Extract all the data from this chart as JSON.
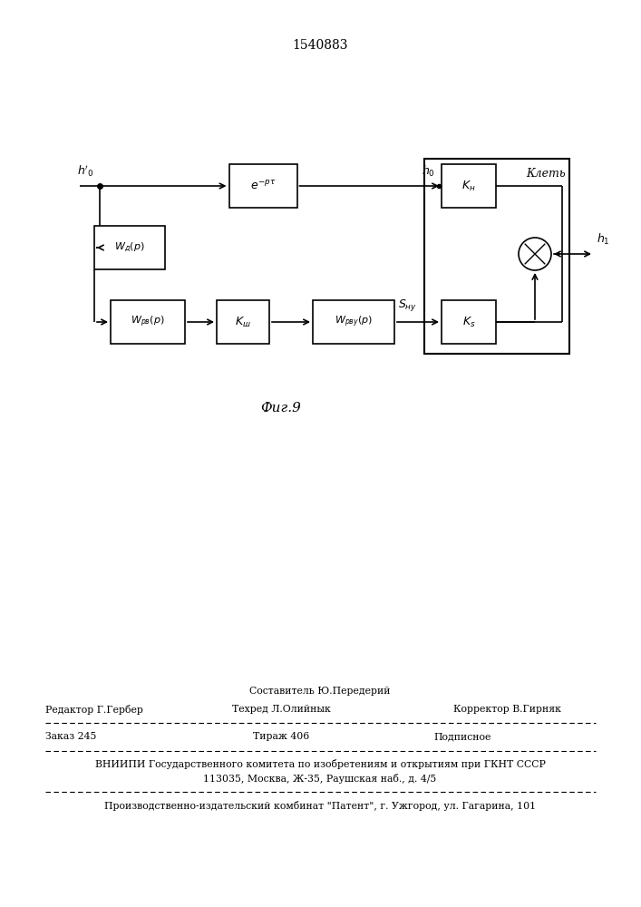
{
  "title": "1540883",
  "fig_label": "Фиг.9",
  "footer": {
    "sestavitel": "Составитель Ю.Передерий",
    "redaktor": "Редактор Г.Гербер",
    "tehred": "Техред Л.Олийнык",
    "korrektor": "Корректор В.Гирняк",
    "zakaz": "Заказ 245",
    "tirazh": "Тираж 406",
    "podpisnoe": "Подписное",
    "vniipи": "ВНИИПИ Государственного комитета по изобретениям и открытиям при ГКНТ СССР",
    "address": "113035, Москва, Ж-35, Раушская наб., д. 4/5",
    "production": "Производственно-издательский комбинат \"Патент\", г. Ужгород, ул. Гагарина, 101"
  }
}
